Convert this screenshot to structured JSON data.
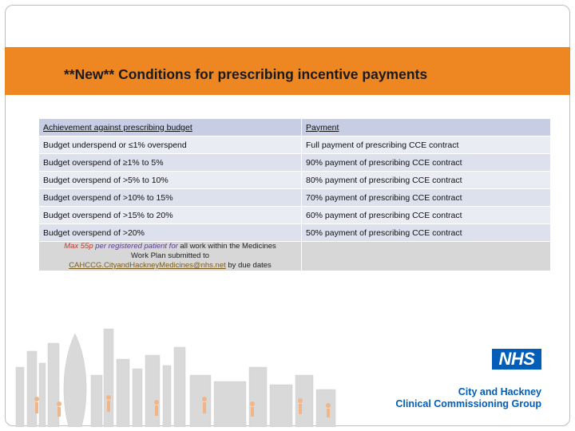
{
  "title": "**New** Conditions for prescribing incentive payments",
  "table": {
    "headers": [
      "Achievement against prescribing budget",
      "Payment"
    ],
    "rows": [
      [
        "Budget underspend or ≤1% overspend",
        "Full payment of prescribing CCE contract"
      ],
      [
        "Budget overspend of ≥1% to 5%",
        "90% payment of prescribing CCE contract"
      ],
      [
        "Budget overspend of >5% to 10%",
        "80% payment of prescribing CCE contract"
      ],
      [
        "Budget overspend of >10% to 15%",
        "70% payment of prescribing CCE contract"
      ],
      [
        "Budget overspend of >15% to 20%",
        "60% payment of prescribing CCE contract"
      ],
      [
        "Budget overspend of >20%",
        "50% payment of prescribing CCE contract"
      ]
    ],
    "note": {
      "max": "Max 55p",
      "per_patient": "per registered patient for",
      "rest_line1": "all work within the Medicines",
      "line2": "Work Plan submitted to",
      "email": "CAHCCG.CityandHackneyMedicines@nhs.net",
      "suffix": "by due dates"
    }
  },
  "logo": {
    "nhs": "NHS",
    "org_line1": "City and Hackney",
    "org_line2": "Clinical Commissioning Group"
  },
  "colors": {
    "title_bar": "#ee8722",
    "header_row": "#c6cde4",
    "row_fill": "#eaecf4",
    "note_fill": "#d7d7d7",
    "nhs_blue": "#005eb8"
  },
  "icons": [
    "city-skyline-illustration",
    "nhs-logo"
  ]
}
